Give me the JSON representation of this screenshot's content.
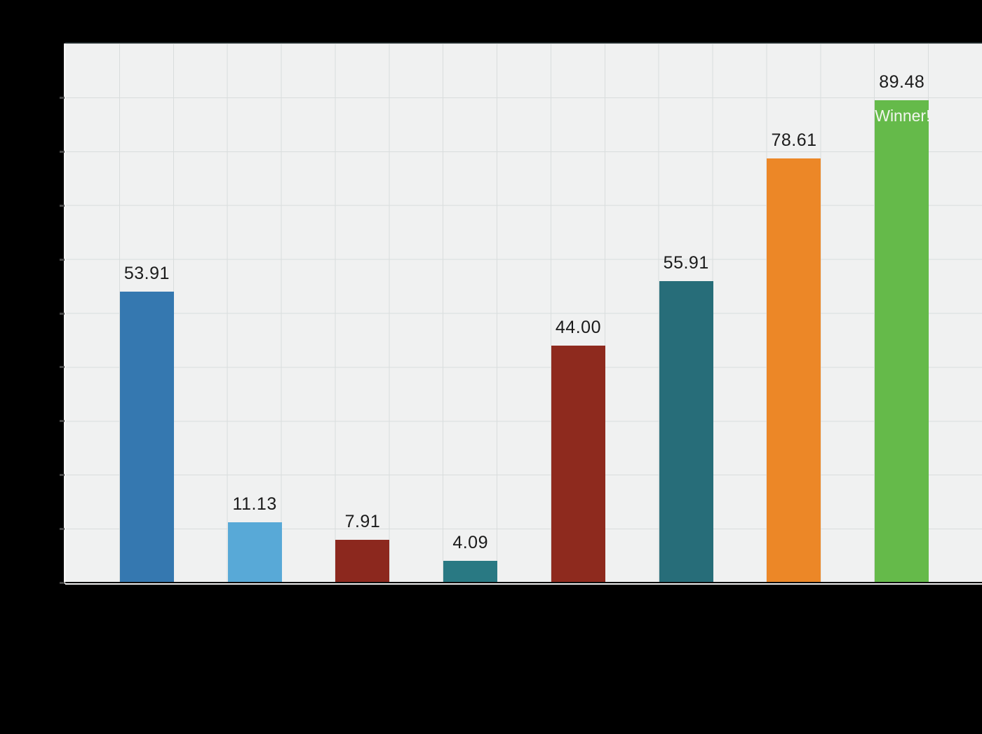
{
  "canvas": {
    "background": "#000000"
  },
  "plot": {
    "background": "#f0f1f1",
    "gridline_color": "#d9dddd",
    "value_label_color": "#1b1b1b",
    "left_spine_color": "#f6f6f6",
    "bottom_spine_color": "#eeeeee",
    "tick_color": "#454545"
  },
  "chart_data": {
    "type": "bar",
    "title": "",
    "xlabel": "",
    "ylabel": "",
    "ylim": [
      0,
      100
    ],
    "grid": true,
    "gridline_interval": 10,
    "legend": "none",
    "categories": [
      "",
      "",
      "",
      "",
      "",
      "",
      "",
      ""
    ],
    "bars": [
      {
        "value": 53.91,
        "label": "53.91",
        "color": "#3578b0",
        "annotation": ""
      },
      {
        "value": 11.13,
        "label": "11.13",
        "color": "#58a9d7",
        "annotation": ""
      },
      {
        "value": 7.91,
        "label": "7.91",
        "color": "#8c281e",
        "annotation": ""
      },
      {
        "value": 4.09,
        "label": "4.09",
        "color": "#297983",
        "annotation": ""
      },
      {
        "value": 44.0,
        "label": "44.00",
        "color": "#8e2a1e",
        "annotation": ""
      },
      {
        "value": 55.91,
        "label": "55.91",
        "color": "#276d79",
        "annotation": ""
      },
      {
        "value": 78.61,
        "label": "78.61",
        "color": "#ec8727",
        "annotation": ""
      },
      {
        "value": 89.48,
        "label": "89.48",
        "color": "#65ba4a",
        "annotation": "Winner!"
      }
    ],
    "annotations": [
      {
        "text": "Winner!",
        "bar_index": 7,
        "color": "#f2f6ee",
        "position": "inside-top"
      }
    ]
  }
}
